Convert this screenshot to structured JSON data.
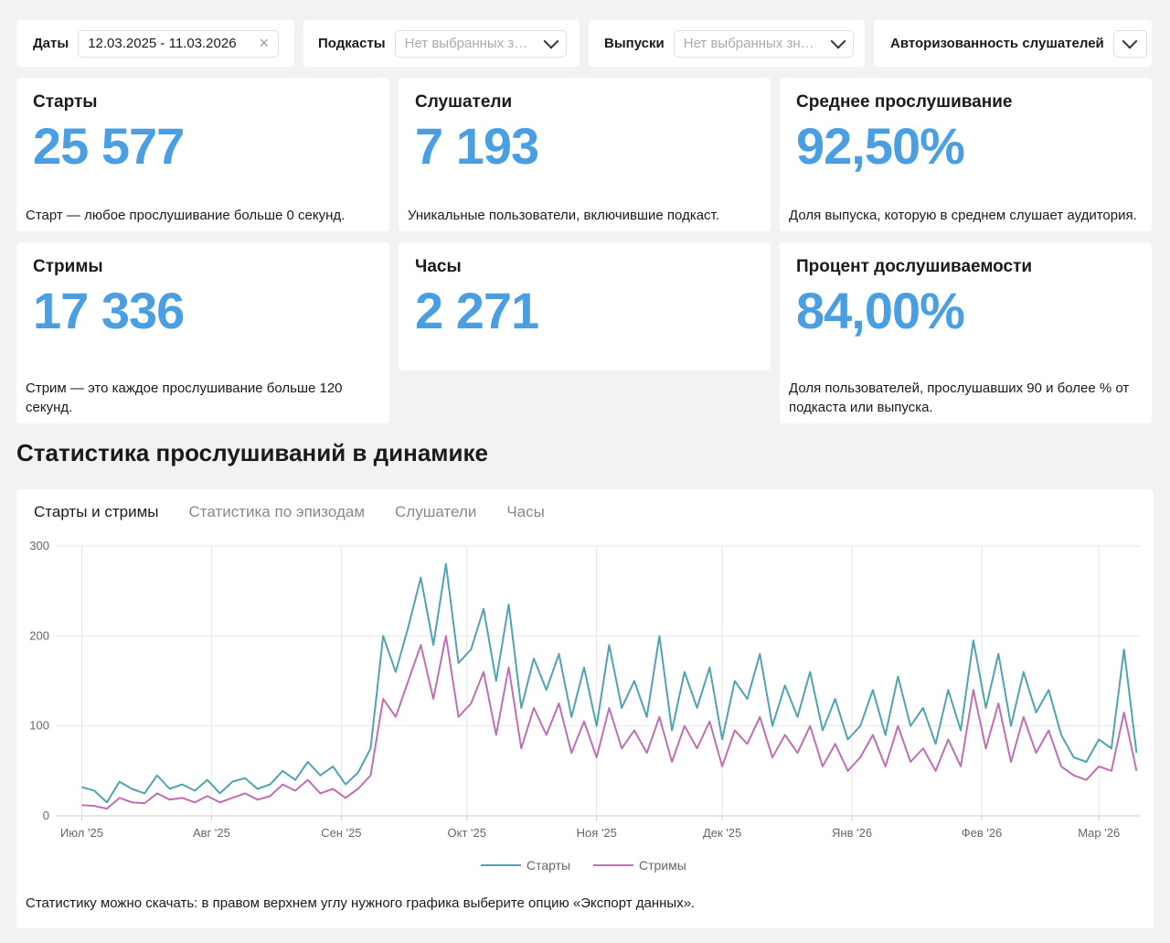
{
  "filters": {
    "dates": {
      "label": "Даты",
      "value": "12.03.2025 - 11.03.2026"
    },
    "podcasts": {
      "label": "Подкасты",
      "placeholder": "Нет выбранных з…"
    },
    "episodes": {
      "label": "Выпуски",
      "placeholder": "Нет выбранных зн…"
    },
    "auth": {
      "label": "Авторизованность слушателей"
    }
  },
  "cards": [
    {
      "title": "Старты",
      "value": "25 577",
      "note": "Старт — любое прослушивание больше 0 секунд."
    },
    {
      "title": "Слушатели",
      "value": "7 193",
      "note": "Уникальные пользователи, включившие подкаст."
    },
    {
      "title": "Среднее прослушивание",
      "value": "92,50%",
      "note": "Доля выпуска, которую в среднем слушает аудитория."
    },
    {
      "title": "Стримы",
      "value": "17 336",
      "note": "Стрим — это каждое прослушивание больше 120 секунд."
    },
    {
      "title": "Часы",
      "value": "2 271"
    },
    {
      "title": "Процент дослушиваемости",
      "value": "84,00%",
      "note": "Доля пользователей, прослушавших 90 и более % от подкаста или выпуска."
    }
  ],
  "section_title": "Статистика прослушиваний в динамике",
  "tabs": [
    "Старты и стримы",
    "Статистика по эпизодам",
    "Слушатели",
    "Часы"
  ],
  "chart_data": {
    "type": "line",
    "x": [
      0,
      3,
      6,
      9,
      12,
      15,
      18,
      21,
      24,
      27,
      30,
      33,
      36,
      39,
      42,
      45,
      48,
      51,
      54,
      57,
      60,
      63,
      66,
      69,
      72,
      75,
      78,
      81,
      84,
      87,
      90,
      93,
      96,
      99,
      102,
      105,
      108,
      111,
      114,
      117,
      120,
      123,
      126,
      129,
      132,
      135,
      138,
      141,
      144,
      147,
      150,
      153,
      156,
      159,
      162,
      165,
      168,
      171,
      174,
      177,
      180,
      183,
      186,
      189,
      192,
      195,
      198,
      201,
      204,
      207,
      210,
      213,
      216,
      219,
      222,
      225,
      228,
      231,
      234,
      237,
      240,
      243,
      246,
      249,
      252
    ],
    "series": [
      {
        "name": "Старты",
        "color": "#4fa3b5",
        "values": [
          32,
          28,
          15,
          38,
          30,
          25,
          45,
          30,
          35,
          28,
          40,
          25,
          38,
          42,
          30,
          35,
          50,
          40,
          60,
          45,
          55,
          35,
          48,
          75,
          200,
          160,
          210,
          265,
          190,
          280,
          170,
          185,
          230,
          150,
          235,
          120,
          175,
          140,
          180,
          110,
          165,
          100,
          190,
          120,
          150,
          110,
          200,
          95,
          160,
          120,
          165,
          85,
          150,
          130,
          180,
          100,
          145,
          110,
          160,
          95,
          130,
          85,
          100,
          140,
          90,
          155,
          100,
          120,
          80,
          140,
          95,
          195,
          120,
          180,
          100,
          160,
          115,
          140,
          90,
          65,
          60,
          85,
          75,
          185,
          70
        ]
      },
      {
        "name": "Стримы",
        "color": "#c06fb4",
        "values": [
          12,
          11,
          8,
          20,
          15,
          14,
          25,
          18,
          20,
          15,
          22,
          15,
          20,
          25,
          18,
          22,
          35,
          28,
          40,
          25,
          30,
          20,
          30,
          45,
          130,
          110,
          150,
          190,
          130,
          200,
          110,
          125,
          160,
          90,
          165,
          75,
          120,
          90,
          125,
          70,
          105,
          65,
          120,
          75,
          95,
          70,
          110,
          60,
          100,
          75,
          105,
          55,
          95,
          80,
          110,
          65,
          90,
          70,
          100,
          55,
          80,
          50,
          65,
          90,
          55,
          100,
          60,
          75,
          50,
          85,
          55,
          140,
          75,
          125,
          60,
          110,
          70,
          95,
          55,
          45,
          40,
          55,
          50,
          115,
          50
        ]
      }
    ],
    "xlim": [
      -6,
      253
    ],
    "xticks": [
      {
        "value": 0,
        "label": "Июл '25"
      },
      {
        "value": 31,
        "label": "Авг '25"
      },
      {
        "value": 62,
        "label": "Сен '25"
      },
      {
        "value": 92,
        "label": "Окт '25"
      },
      {
        "value": 123,
        "label": "Ноя '25"
      },
      {
        "value": 153,
        "label": "Дек '25"
      },
      {
        "value": 184,
        "label": "Янв '26"
      },
      {
        "value": 215,
        "label": "Фев '26"
      },
      {
        "value": 243,
        "label": "Мар '26"
      }
    ],
    "ylim": [
      0,
      300
    ],
    "yticks": [
      0,
      100,
      200,
      300
    ],
    "grid": true
  },
  "export_note": "Статистику можно скачать: в правом верхнем углу нужного графика выберите опцию «Экспорт данных»."
}
